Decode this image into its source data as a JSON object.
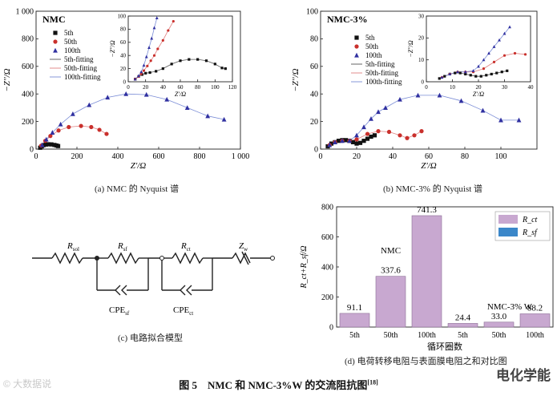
{
  "figure_caption": "图 5　NMC 和 NMC-3%W 的交流阻抗图",
  "figure_ref": "[18]",
  "watermark_left": "© 大数据说",
  "watermark_right": "电化学能",
  "panels": {
    "a": {
      "caption": "(a) NMC 的 Nyquist 谱"
    },
    "b": {
      "caption": "(b) NMC-3% 的 Nyquist 谱"
    },
    "c": {
      "caption": "(c) 电路拟合模型"
    },
    "d": {
      "caption": "(d) 电荷转移电阻与表面膜电阻之和对比图"
    }
  },
  "circuit": {
    "labels": [
      "R",
      "R",
      "R",
      "Z",
      "CPE",
      "CPE"
    ],
    "subs": [
      "sol",
      "sf",
      "ct",
      "w",
      "sf",
      "ct"
    ]
  },
  "chart_data": [
    {
      "id": "a-main",
      "type": "scatter",
      "title": "NMC",
      "xlabel": "Z'/Ω",
      "ylabel": "−Z''/Ω",
      "xlim": [
        0,
        1000
      ],
      "ylim": [
        0,
        1000
      ],
      "xticks": [
        0,
        200,
        400,
        600,
        800,
        1000
      ],
      "yticks": [
        0,
        200,
        400,
        600,
        800,
        1000
      ],
      "xtick_labels": [
        "0",
        "200",
        "400",
        "600",
        "800",
        "1 000"
      ],
      "ytick_labels": [
        "0",
        "200",
        "400",
        "600",
        "800",
        "1 000"
      ],
      "legend": [
        "5th",
        "50th",
        "100th",
        "5th-fitting",
        "50th-fitting",
        "100th-fitting"
      ],
      "series": [
        {
          "name": "5th",
          "marker": "square",
          "color": "#111111",
          "x": [
            20,
            28,
            36,
            48,
            60,
            75,
            90,
            100,
            108
          ],
          "y": [
            10,
            20,
            28,
            33,
            35,
            34,
            30,
            26,
            22
          ]
        },
        {
          "name": "50th",
          "marker": "circle",
          "color": "#c9302c",
          "x": [
            25,
            45,
            70,
            110,
            160,
            220,
            270,
            310,
            345
          ],
          "y": [
            25,
            60,
            95,
            135,
            160,
            168,
            160,
            140,
            110
          ]
        },
        {
          "name": "100th",
          "marker": "triangle",
          "color": "#3030a0",
          "x": [
            30,
            50,
            80,
            120,
            180,
            260,
            350,
            440,
            540,
            640,
            740,
            840,
            920
          ],
          "y": [
            30,
            70,
            120,
            180,
            255,
            320,
            375,
            400,
            395,
            360,
            300,
            240,
            215
          ]
        }
      ]
    },
    {
      "id": "a-inset",
      "type": "scatter",
      "xlabel": "Z'/Ω",
      "ylabel": "−Z''/Ω",
      "xlim": [
        0,
        120
      ],
      "ylim": [
        0,
        100
      ],
      "xticks": [
        0,
        20,
        40,
        60,
        80,
        100,
        120
      ],
      "yticks": [
        0,
        20,
        40,
        60,
        80,
        100
      ],
      "series": [
        {
          "name": "5th",
          "marker": "square",
          "color": "#111111",
          "x": [
            8,
            12,
            16,
            20,
            25,
            32,
            40,
            50,
            60,
            70,
            80,
            90,
            100,
            108,
            112
          ],
          "y": [
            4,
            8,
            11,
            13,
            14,
            16,
            20,
            27,
            32,
            34,
            34,
            32,
            27,
            21,
            20
          ]
        },
        {
          "name": "50th",
          "marker": "circle",
          "color": "#c9302c",
          "x": [
            8,
            12,
            15,
            18,
            22,
            26,
            30,
            34,
            40,
            46,
            52
          ],
          "y": [
            4,
            8,
            12,
            17,
            24,
            32,
            40,
            50,
            63,
            78,
            92
          ]
        },
        {
          "name": "100th",
          "marker": "triangle",
          "color": "#3030a0",
          "x": [
            8,
            12,
            15,
            18,
            21,
            24,
            27,
            30,
            33
          ],
          "y": [
            4,
            9,
            15,
            25,
            38,
            52,
            66,
            82,
            97
          ]
        }
      ]
    },
    {
      "id": "b-main",
      "type": "scatter",
      "title": "NMC-3%",
      "xlabel": "Z'/Ω",
      "ylabel": "−Z''/Ω",
      "xlim": [
        0,
        120
      ],
      "ylim": [
        0,
        100
      ],
      "xticks": [
        0,
        20,
        40,
        60,
        80,
        100
      ],
      "yticks": [
        0,
        20,
        40,
        60,
        80,
        100
      ],
      "xtick_labels": [
        "0",
        "20",
        "40",
        "60",
        "80",
        "100"
      ],
      "ytick_labels": [
        "0",
        "20",
        "40",
        "60",
        "80",
        "100"
      ],
      "legend": [
        "5th",
        "50th",
        "100th",
        "5th-fitting",
        "50th-fitting",
        "100th-fitting"
      ],
      "series": [
        {
          "name": "5th",
          "marker": "square",
          "color": "#111111",
          "x": [
            4,
            6,
            8,
            10,
            12,
            14,
            16,
            18,
            20,
            22,
            24,
            26,
            28,
            30
          ],
          "y": [
            2,
            4,
            5,
            6,
            6.5,
            6.5,
            6,
            5,
            4,
            4.5,
            6,
            7.5,
            9,
            10
          ]
        },
        {
          "name": "50th",
          "marker": "circle",
          "color": "#c9302c",
          "x": [
            5,
            8,
            12,
            16,
            20,
            26,
            32,
            38,
            44,
            48,
            52,
            56
          ],
          "y": [
            3,
            5,
            6,
            6,
            7,
            11,
            13,
            12.5,
            10,
            8,
            10,
            13
          ]
        },
        {
          "name": "100th",
          "marker": "triangle",
          "color": "#3030a0",
          "x": [
            5,
            8,
            12,
            16,
            20,
            24,
            28,
            32,
            36,
            44,
            54,
            66,
            78,
            90,
            100,
            110
          ],
          "y": [
            3,
            5,
            6,
            6,
            10,
            16,
            22,
            27,
            30,
            36,
            39,
            39,
            35,
            28,
            21,
            21
          ]
        }
      ]
    },
    {
      "id": "b-inset",
      "type": "scatter",
      "xlabel": "Z'/Ω",
      "ylabel": "−Z''/Ω",
      "xlim": [
        0,
        40
      ],
      "ylim": [
        0,
        30
      ],
      "xticks": [
        0,
        10,
        20,
        30,
        40
      ],
      "yticks": [
        0,
        10,
        20,
        30
      ],
      "series": [
        {
          "name": "5th",
          "marker": "square",
          "color": "#111111",
          "x": [
            5,
            7,
            9,
            11,
            13,
            15,
            17,
            19,
            21,
            23,
            25,
            27,
            29,
            31
          ],
          "y": [
            1.5,
            2.5,
            3.5,
            4,
            4,
            3.5,
            3,
            2.5,
            2.5,
            3,
            3.5,
            4,
            4.5,
            5
          ]
        },
        {
          "name": "50th",
          "marker": "circle",
          "color": "#c9302c",
          "x": [
            6,
            9,
            12,
            15,
            18,
            22,
            26,
            30,
            34,
            38
          ],
          "y": [
            2,
            3.5,
            4.5,
            4.5,
            4.5,
            6,
            9,
            12,
            13,
            12.5
          ]
        },
        {
          "name": "100th",
          "marker": "triangle",
          "color": "#3030a0",
          "x": [
            6,
            9,
            12,
            15,
            18,
            20,
            22,
            24,
            26,
            28,
            30,
            32
          ],
          "y": [
            2,
            3.5,
            4.5,
            4.5,
            5,
            7,
            10,
            13,
            16,
            19,
            22,
            25
          ]
        }
      ]
    },
    {
      "id": "d-bar",
      "type": "bar",
      "ylabel": "R_ct+R_sf/Ω",
      "xlabel": "循环圈数",
      "ylim": [
        0,
        800
      ],
      "yticks": [
        0,
        200,
        400,
        600,
        800
      ],
      "categories": [
        "5th",
        "50th",
        "100th",
        "5th",
        "50th",
        "100th"
      ],
      "values": [
        91.1,
        337.6,
        741.3,
        24.4,
        33.0,
        88.2
      ],
      "value_labels": [
        "91.1",
        "337.6",
        "741.3",
        "24.4",
        "33.0",
        "88.2"
      ],
      "group_labels": [
        "NMC",
        "NMC-3% W"
      ],
      "legend": [
        "R_ct",
        "R_sf"
      ],
      "colors": {
        "rct": "#c8a8d0",
        "rsf": "#3b87c9"
      }
    }
  ]
}
